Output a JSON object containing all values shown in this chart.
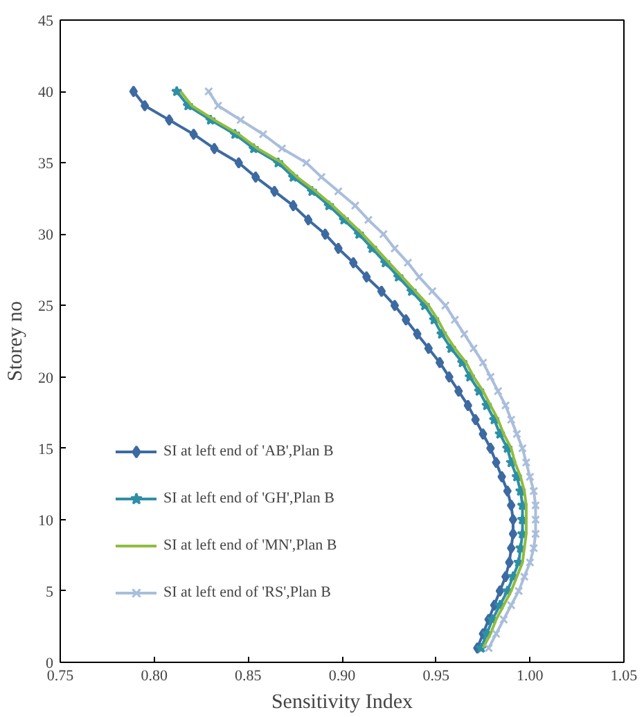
{
  "chart_data": {
    "type": "line",
    "xlabel": "Sensitivity Index",
    "ylabel": "Storey no",
    "xlim": [
      0.75,
      1.05
    ],
    "xticks": [
      {
        "value": 0.75,
        "label": "0.75"
      },
      {
        "value": 0.8,
        "label": "0.80"
      },
      {
        "value": 0.85,
        "label": "0.85"
      },
      {
        "value": 0.9,
        "label": "0.90"
      },
      {
        "value": 0.95,
        "label": "0.95"
      },
      {
        "value": 1.0,
        "label": "1.00"
      },
      {
        "value": 1.05,
        "label": "1.05"
      }
    ],
    "ylim": [
      0,
      45
    ],
    "yticks": [
      0,
      5,
      10,
      15,
      20,
      25,
      30,
      35,
      40,
      45
    ],
    "grid": false,
    "legend": "bottom left",
    "series": [
      {
        "name": "SI at left end of 'AB',Plan B",
        "color": "#3d6aa1",
        "marker": "diamond",
        "values": [
          1,
          2,
          3,
          4,
          5,
          6,
          7,
          8,
          9,
          10,
          11,
          12,
          13,
          14,
          15,
          16,
          17,
          18,
          19,
          20,
          21,
          22,
          23,
          24,
          25,
          26,
          27,
          28,
          29,
          30,
          31,
          32,
          33,
          34,
          35,
          36,
          37,
          38,
          39,
          40
        ],
        "x": [
          0.972,
          0.975,
          0.978,
          0.981,
          0.984,
          0.987,
          0.989,
          0.99,
          0.991,
          0.991,
          0.99,
          0.988,
          0.985,
          0.982,
          0.979,
          0.975,
          0.971,
          0.967,
          0.962,
          0.957,
          0.952,
          0.946,
          0.94,
          0.934,
          0.928,
          0.921,
          0.913,
          0.906,
          0.898,
          0.891,
          0.882,
          0.874,
          0.864,
          0.854,
          0.845,
          0.832,
          0.821,
          0.808,
          0.795,
          0.789
        ]
      },
      {
        "name": "SI at left end of 'GH',Plan B",
        "color": "#2e8fa5",
        "marker": "star",
        "values": [
          1,
          2,
          3,
          4,
          5,
          6,
          7,
          8,
          9,
          10,
          11,
          12,
          13,
          14,
          15,
          16,
          17,
          18,
          19,
          20,
          21,
          22,
          23,
          24,
          25,
          26,
          27,
          28,
          29,
          30,
          31,
          32,
          33,
          34,
          35,
          36,
          37,
          38,
          39,
          40
        ],
        "x": [
          0.974,
          0.977,
          0.98,
          0.984,
          0.988,
          0.991,
          0.994,
          0.995,
          0.996,
          0.996,
          0.996,
          0.995,
          0.993,
          0.99,
          0.988,
          0.984,
          0.981,
          0.977,
          0.973,
          0.968,
          0.964,
          0.958,
          0.953,
          0.949,
          0.944,
          0.937,
          0.93,
          0.923,
          0.916,
          0.909,
          0.901,
          0.893,
          0.884,
          0.874,
          0.866,
          0.853,
          0.843,
          0.83,
          0.818,
          0.812
        ]
      },
      {
        "name": "SI at left end of 'MN',Plan B",
        "color": "#8fbc3f",
        "marker": "none",
        "values": [
          1,
          2,
          3,
          4,
          5,
          6,
          7,
          8,
          9,
          10,
          11,
          12,
          13,
          14,
          15,
          16,
          17,
          18,
          19,
          20,
          21,
          22,
          23,
          24,
          25,
          26,
          27,
          28,
          29,
          30,
          31,
          32,
          33,
          34,
          35,
          36,
          37,
          38,
          39,
          40
        ],
        "x": [
          0.975,
          0.979,
          0.982,
          0.986,
          0.99,
          0.993,
          0.996,
          0.997,
          0.998,
          0.998,
          0.998,
          0.997,
          0.995,
          0.992,
          0.99,
          0.986,
          0.983,
          0.979,
          0.975,
          0.97,
          0.966,
          0.96,
          0.955,
          0.951,
          0.946,
          0.939,
          0.932,
          0.925,
          0.918,
          0.911,
          0.903,
          0.895,
          0.886,
          0.876,
          0.868,
          0.855,
          0.845,
          0.832,
          0.82,
          0.814
        ]
      },
      {
        "name": "SI at left end of 'RS',Plan B",
        "color": "#a9bedc",
        "marker": "cross",
        "values": [
          1,
          2,
          3,
          4,
          5,
          6,
          7,
          8,
          9,
          10,
          11,
          12,
          13,
          14,
          15,
          16,
          17,
          18,
          19,
          20,
          21,
          22,
          23,
          24,
          25,
          26,
          27,
          28,
          29,
          30,
          31,
          32,
          33,
          34,
          35,
          36,
          37,
          38,
          39,
          40
        ],
        "x": [
          0.978,
          0.982,
          0.986,
          0.99,
          0.994,
          0.997,
          1.0,
          1.002,
          1.003,
          1.003,
          1.003,
          1.002,
          1.0,
          0.998,
          0.996,
          0.993,
          0.99,
          0.987,
          0.983,
          0.979,
          0.975,
          0.97,
          0.965,
          0.96,
          0.955,
          0.948,
          0.941,
          0.935,
          0.928,
          0.922,
          0.914,
          0.907,
          0.898,
          0.889,
          0.881,
          0.868,
          0.858,
          0.846,
          0.834,
          0.829
        ]
      }
    ]
  }
}
